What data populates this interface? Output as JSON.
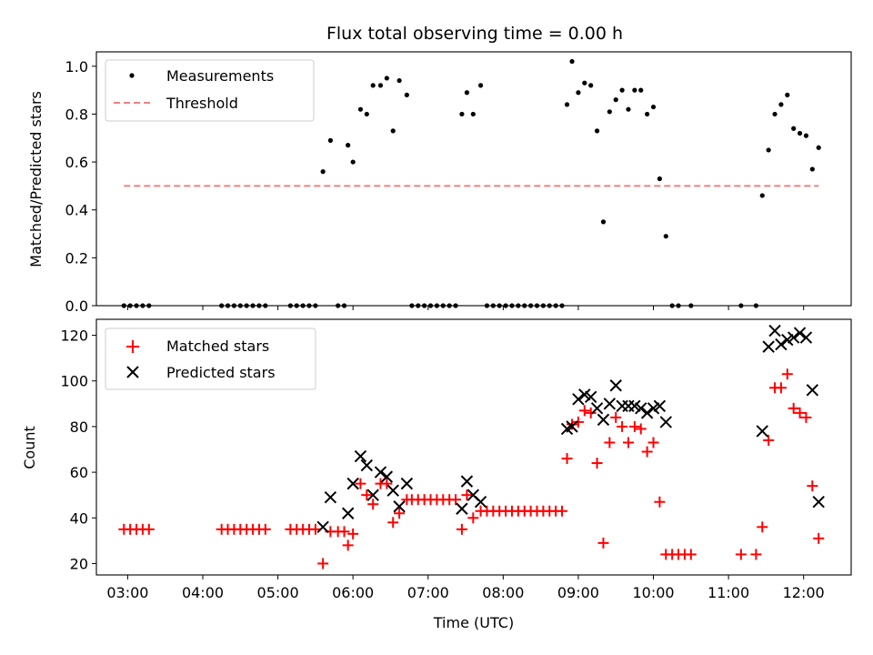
{
  "chart_data": [
    {
      "type": "scatter",
      "title": "Flux total observing time = 0.00 h",
      "xlabel": "",
      "ylabel": "Matched/Predicted stars",
      "ylim": [
        0.0,
        1.06
      ],
      "xlim": [
        "02:35",
        "12:38"
      ],
      "yticks": [
        "0.0",
        "0.2",
        "0.4",
        "0.6",
        "0.8",
        "1.0"
      ],
      "grid": false,
      "legend_position": "top-left",
      "series": [
        {
          "name": "Measurements",
          "style": "dot",
          "color": "#000000",
          "points": [
            [
              "02:57",
              0.0
            ],
            [
              "03:02",
              0.0
            ],
            [
              "03:07",
              0.0
            ],
            [
              "03:12",
              0.0
            ],
            [
              "03:17",
              0.0
            ],
            [
              "04:15",
              0.0
            ],
            [
              "04:20",
              0.0
            ],
            [
              "04:25",
              0.0
            ],
            [
              "04:30",
              0.0
            ],
            [
              "04:35",
              0.0
            ],
            [
              "04:40",
              0.0
            ],
            [
              "04:45",
              0.0
            ],
            [
              "04:50",
              0.0
            ],
            [
              "05:10",
              0.0
            ],
            [
              "05:15",
              0.0
            ],
            [
              "05:20",
              0.0
            ],
            [
              "05:25",
              0.0
            ],
            [
              "05:30",
              0.0
            ],
            [
              "05:36",
              0.56
            ],
            [
              "05:42",
              0.69
            ],
            [
              "05:48",
              0.0
            ],
            [
              "05:53",
              0.0
            ],
            [
              "05:56",
              0.67
            ],
            [
              "06:00",
              0.6
            ],
            [
              "06:06",
              0.82
            ],
            [
              "06:11",
              0.8
            ],
            [
              "06:16",
              0.92
            ],
            [
              "06:22",
              0.92
            ],
            [
              "06:27",
              0.95
            ],
            [
              "06:32",
              0.73
            ],
            [
              "06:37",
              0.94
            ],
            [
              "06:43",
              0.88
            ],
            [
              "06:47",
              0.0
            ],
            [
              "06:52",
              0.0
            ],
            [
              "06:57",
              0.0
            ],
            [
              "07:02",
              0.0
            ],
            [
              "07:07",
              0.0
            ],
            [
              "07:12",
              0.0
            ],
            [
              "07:17",
              0.0
            ],
            [
              "07:22",
              0.0
            ],
            [
              "07:27",
              0.8
            ],
            [
              "07:31",
              0.89
            ],
            [
              "07:36",
              0.8
            ],
            [
              "07:42",
              0.92
            ],
            [
              "07:47",
              0.0
            ],
            [
              "07:52",
              0.0
            ],
            [
              "07:57",
              0.0
            ],
            [
              "08:02",
              0.0
            ],
            [
              "08:07",
              0.0
            ],
            [
              "08:12",
              0.0
            ],
            [
              "08:17",
              0.0
            ],
            [
              "08:22",
              0.0
            ],
            [
              "08:27",
              0.0
            ],
            [
              "08:32",
              0.0
            ],
            [
              "08:37",
              0.0
            ],
            [
              "08:42",
              0.0
            ],
            [
              "08:47",
              0.0
            ],
            [
              "08:51",
              0.84
            ],
            [
              "08:55",
              1.02
            ],
            [
              "09:00",
              0.89
            ],
            [
              "09:05",
              0.93
            ],
            [
              "09:10",
              0.92
            ],
            [
              "09:15",
              0.73
            ],
            [
              "09:20",
              0.35
            ],
            [
              "09:25",
              0.81
            ],
            [
              "09:30",
              0.86
            ],
            [
              "09:35",
              0.9
            ],
            [
              "09:40",
              0.82
            ],
            [
              "09:45",
              0.9
            ],
            [
              "09:50",
              0.9
            ],
            [
              "09:55",
              0.8
            ],
            [
              "10:00",
              0.83
            ],
            [
              "10:05",
              0.53
            ],
            [
              "10:10",
              0.29
            ],
            [
              "10:15",
              0.0
            ],
            [
              "10:20",
              0.0
            ],
            [
              "10:30",
              0.0
            ],
            [
              "11:10",
              0.0
            ],
            [
              "11:22",
              0.0
            ],
            [
              "11:27",
              0.46
            ],
            [
              "11:32",
              0.65
            ],
            [
              "11:37",
              0.8
            ],
            [
              "11:42",
              0.84
            ],
            [
              "11:47",
              0.88
            ],
            [
              "11:52",
              0.74
            ],
            [
              "11:57",
              0.72
            ],
            [
              "12:02",
              0.71
            ],
            [
              "12:07",
              0.57
            ],
            [
              "12:12",
              0.66
            ]
          ]
        },
        {
          "name": "Threshold",
          "style": "dashed-line",
          "color": "#f08080",
          "points": [
            [
              "02:57",
              0.5
            ],
            [
              "12:12",
              0.5
            ]
          ]
        }
      ]
    },
    {
      "type": "scatter",
      "title": "",
      "xlabel": "Time (UTC)",
      "ylabel": "Count",
      "ylim": [
        15,
        127
      ],
      "xlim": [
        "02:35",
        "12:38"
      ],
      "xticks": [
        "03:00",
        "04:00",
        "05:00",
        "06:00",
        "07:00",
        "08:00",
        "09:00",
        "10:00",
        "11:00",
        "12:00"
      ],
      "yticks": [
        "20",
        "40",
        "60",
        "80",
        "100",
        "120"
      ],
      "grid": false,
      "legend_position": "top-left",
      "series": [
        {
          "name": "Matched stars",
          "marker": "plus",
          "color": "#ff0000",
          "points": [
            [
              "02:57",
              35
            ],
            [
              "03:02",
              35
            ],
            [
              "03:07",
              35
            ],
            [
              "03:12",
              35
            ],
            [
              "03:17",
              35
            ],
            [
              "04:15",
              35
            ],
            [
              "04:20",
              35
            ],
            [
              "04:25",
              35
            ],
            [
              "04:30",
              35
            ],
            [
              "04:35",
              35
            ],
            [
              "04:40",
              35
            ],
            [
              "04:45",
              35
            ],
            [
              "04:50",
              35
            ],
            [
              "05:10",
              35
            ],
            [
              "05:15",
              35
            ],
            [
              "05:20",
              35
            ],
            [
              "05:25",
              35
            ],
            [
              "05:30",
              35
            ],
            [
              "05:36",
              20
            ],
            [
              "05:42",
              34
            ],
            [
              "05:48",
              34
            ],
            [
              "05:53",
              34
            ],
            [
              "05:56",
              28
            ],
            [
              "06:00",
              33
            ],
            [
              "06:06",
              55
            ],
            [
              "06:11",
              50
            ],
            [
              "06:16",
              46
            ],
            [
              "06:22",
              55
            ],
            [
              "06:27",
              55
            ],
            [
              "06:32",
              38
            ],
            [
              "06:37",
              42
            ],
            [
              "06:43",
              48
            ],
            [
              "06:47",
              48
            ],
            [
              "06:52",
              48
            ],
            [
              "06:57",
              48
            ],
            [
              "07:02",
              48
            ],
            [
              "07:07",
              48
            ],
            [
              "07:12",
              48
            ],
            [
              "07:17",
              48
            ],
            [
              "07:22",
              48
            ],
            [
              "07:27",
              35
            ],
            [
              "07:31",
              50
            ],
            [
              "07:36",
              40
            ],
            [
              "07:42",
              43
            ],
            [
              "07:47",
              43
            ],
            [
              "07:52",
              43
            ],
            [
              "07:57",
              43
            ],
            [
              "08:02",
              43
            ],
            [
              "08:07",
              43
            ],
            [
              "08:12",
              43
            ],
            [
              "08:17",
              43
            ],
            [
              "08:22",
              43
            ],
            [
              "08:27",
              43
            ],
            [
              "08:32",
              43
            ],
            [
              "08:37",
              43
            ],
            [
              "08:42",
              43
            ],
            [
              "08:47",
              43
            ],
            [
              "08:51",
              66
            ],
            [
              "08:55",
              81
            ],
            [
              "09:00",
              82
            ],
            [
              "09:05",
              87
            ],
            [
              "09:10",
              86
            ],
            [
              "09:15",
              64
            ],
            [
              "09:20",
              29
            ],
            [
              "09:25",
              73
            ],
            [
              "09:30",
              84
            ],
            [
              "09:35",
              80
            ],
            [
              "09:40",
              73
            ],
            [
              "09:45",
              80
            ],
            [
              "09:50",
              79
            ],
            [
              "09:55",
              69
            ],
            [
              "10:00",
              73
            ],
            [
              "10:05",
              47
            ],
            [
              "10:10",
              24
            ],
            [
              "10:15",
              24
            ],
            [
              "10:20",
              24
            ],
            [
              "10:25",
              24
            ],
            [
              "10:30",
              24
            ],
            [
              "11:10",
              24
            ],
            [
              "11:22",
              24
            ],
            [
              "11:27",
              36
            ],
            [
              "11:32",
              74
            ],
            [
              "11:37",
              97
            ],
            [
              "11:42",
              97
            ],
            [
              "11:47",
              103
            ],
            [
              "11:52",
              88
            ],
            [
              "11:57",
              86
            ],
            [
              "12:02",
              84
            ],
            [
              "12:07",
              54
            ],
            [
              "12:12",
              31
            ]
          ]
        },
        {
          "name": "Predicted stars",
          "marker": "x",
          "color": "#000000",
          "points": [
            [
              "05:36",
              36
            ],
            [
              "05:42",
              49
            ],
            [
              "05:56",
              42
            ],
            [
              "06:00",
              55
            ],
            [
              "06:06",
              67
            ],
            [
              "06:11",
              63
            ],
            [
              "06:16",
              50
            ],
            [
              "06:22",
              60
            ],
            [
              "06:27",
              58
            ],
            [
              "06:32",
              52
            ],
            [
              "06:37",
              45
            ],
            [
              "06:43",
              55
            ],
            [
              "07:27",
              44
            ],
            [
              "07:31",
              56
            ],
            [
              "07:36",
              50
            ],
            [
              "07:42",
              47
            ],
            [
              "08:51",
              79
            ],
            [
              "08:55",
              80
            ],
            [
              "09:00",
              92
            ],
            [
              "09:05",
              94
            ],
            [
              "09:10",
              93
            ],
            [
              "09:15",
              88
            ],
            [
              "09:20",
              83
            ],
            [
              "09:25",
              90
            ],
            [
              "09:30",
              98
            ],
            [
              "09:35",
              89
            ],
            [
              "09:40",
              89
            ],
            [
              "09:45",
              89
            ],
            [
              "09:50",
              88
            ],
            [
              "09:55",
              86
            ],
            [
              "10:00",
              88
            ],
            [
              "10:05",
              89
            ],
            [
              "10:10",
              82
            ],
            [
              "11:27",
              78
            ],
            [
              "11:32",
              115
            ],
            [
              "11:37",
              122
            ],
            [
              "11:42",
              116
            ],
            [
              "11:47",
              118
            ],
            [
              "11:52",
              119
            ],
            [
              "11:57",
              121
            ],
            [
              "12:02",
              119
            ],
            [
              "12:07",
              96
            ],
            [
              "12:12",
              47
            ]
          ]
        }
      ]
    }
  ]
}
